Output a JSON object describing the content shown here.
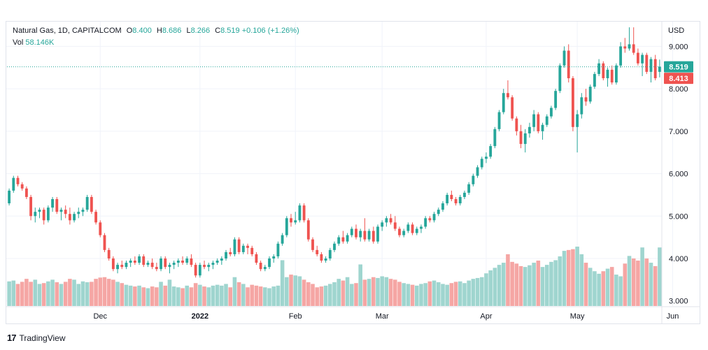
{
  "legend": {
    "symbol": "Natural Gas, 1D, CAPITALCOM",
    "o_label": "O",
    "o_value": "8.400",
    "h_label": "H",
    "h_value": "8.686",
    "l_label": "L",
    "l_value": "8.266",
    "c_label": "C",
    "c_value": "8.519",
    "change": "+0.106 (+1.26%)",
    "vol_label": "Vol",
    "vol_value": "58.146K"
  },
  "footer": {
    "logo": "17",
    "brand": "TradingView"
  },
  "colors": {
    "up": "#26a69a",
    "down": "#ef5350",
    "up_vol": "#9fd5cf",
    "down_vol": "#f5a6a4",
    "grid": "#f0f3fa",
    "axis_text": "#131722"
  },
  "chart_data": {
    "type": "candlestick",
    "title": "Natural Gas, 1D, CAPITALCOM",
    "currency_label": "USD",
    "ylim": [
      2.88,
      9.6
    ],
    "y_ticks": [
      "3.000",
      "4.000",
      "5.000",
      "6.000",
      "7.000",
      "8.000",
      "9.000"
    ],
    "x_ticks": [
      {
        "label": "Dec",
        "index": 21
      },
      {
        "label": "2022",
        "index": 44
      },
      {
        "label": "Feb",
        "index": 66
      },
      {
        "label": "Mar",
        "index": 86
      },
      {
        "label": "Apr",
        "index": 110
      },
      {
        "label": "May",
        "index": 131
      },
      {
        "label": "Jun",
        "index": 153
      }
    ],
    "current_price": {
      "label": "8.519",
      "value": 8.519
    },
    "prev_close": {
      "label": "8.413",
      "value": 8.413
    },
    "ohlc": [
      [
        5.3,
        5.65,
        5.25,
        5.6
      ],
      [
        5.6,
        5.95,
        5.55,
        5.9
      ],
      [
        5.9,
        5.95,
        5.7,
        5.75
      ],
      [
        5.75,
        5.8,
        5.6,
        5.65
      ],
      [
        5.65,
        5.7,
        5.4,
        5.45
      ],
      [
        5.45,
        5.5,
        4.9,
        5.0
      ],
      [
        5.0,
        5.2,
        4.85,
        5.1
      ],
      [
        5.1,
        5.2,
        4.95,
        5.15
      ],
      [
        5.15,
        5.2,
        4.8,
        4.9
      ],
      [
        4.9,
        5.25,
        4.85,
        5.2
      ],
      [
        5.2,
        5.45,
        5.1,
        5.4
      ],
      [
        5.4,
        5.45,
        5.05,
        5.1
      ],
      [
        5.1,
        5.2,
        4.9,
        5.15
      ],
      [
        5.15,
        5.25,
        4.95,
        5.05
      ],
      [
        5.05,
        5.2,
        4.8,
        4.9
      ],
      [
        4.9,
        5.1,
        4.85,
        5.05
      ],
      [
        5.05,
        5.2,
        4.95,
        5.1
      ],
      [
        5.1,
        5.2,
        5.0,
        5.15
      ],
      [
        5.15,
        5.5,
        5.1,
        5.45
      ],
      [
        5.45,
        5.5,
        5.05,
        5.1
      ],
      [
        5.1,
        5.15,
        4.8,
        4.85
      ],
      [
        4.85,
        4.9,
        4.5,
        4.55
      ],
      [
        4.55,
        4.6,
        4.15,
        4.2
      ],
      [
        4.2,
        4.25,
        3.95,
        4.0
      ],
      [
        4.0,
        4.05,
        3.7,
        3.75
      ],
      [
        3.75,
        3.9,
        3.65,
        3.85
      ],
      [
        3.85,
        3.95,
        3.75,
        3.8
      ],
      [
        3.8,
        3.95,
        3.75,
        3.9
      ],
      [
        3.9,
        4.0,
        3.8,
        3.95
      ],
      [
        3.95,
        4.05,
        3.85,
        3.9
      ],
      [
        3.9,
        4.1,
        3.85,
        4.05
      ],
      [
        4.05,
        4.1,
        3.8,
        3.85
      ],
      [
        3.85,
        3.95,
        3.8,
        3.9
      ],
      [
        3.9,
        4.0,
        3.75,
        3.8
      ],
      [
        3.8,
        3.9,
        3.7,
        3.75
      ],
      [
        3.75,
        4.05,
        3.7,
        4.0
      ],
      [
        4.0,
        4.05,
        3.75,
        3.8
      ],
      [
        3.8,
        3.9,
        3.65,
        3.85
      ],
      [
        3.85,
        3.95,
        3.75,
        3.9
      ],
      [
        3.9,
        4.0,
        3.8,
        3.95
      ],
      [
        3.95,
        4.05,
        3.85,
        3.9
      ],
      [
        3.9,
        4.05,
        3.85,
        4.0
      ],
      [
        4.0,
        4.1,
        3.8,
        3.85
      ],
      [
        3.85,
        3.9,
        3.55,
        3.6
      ],
      [
        3.6,
        3.9,
        3.55,
        3.85
      ],
      [
        3.85,
        3.95,
        3.75,
        3.8
      ],
      [
        3.8,
        3.9,
        3.7,
        3.85
      ],
      [
        3.85,
        3.95,
        3.75,
        3.9
      ],
      [
        3.9,
        4.0,
        3.85,
        3.95
      ],
      [
        3.95,
        4.05,
        3.85,
        4.0
      ],
      [
        4.0,
        4.2,
        3.95,
        4.15
      ],
      [
        4.15,
        4.25,
        4.05,
        4.1
      ],
      [
        4.1,
        4.5,
        4.05,
        4.45
      ],
      [
        4.45,
        4.5,
        4.1,
        4.15
      ],
      [
        4.15,
        4.35,
        4.1,
        4.3
      ],
      [
        4.3,
        4.35,
        4.1,
        4.25
      ],
      [
        4.25,
        4.3,
        4.05,
        4.1
      ],
      [
        4.1,
        4.15,
        3.85,
        3.9
      ],
      [
        3.9,
        3.95,
        3.7,
        3.75
      ],
      [
        3.75,
        3.85,
        3.7,
        3.8
      ],
      [
        3.8,
        4.05,
        3.75,
        4.0
      ],
      [
        4.0,
        4.1,
        3.9,
        4.05
      ],
      [
        4.05,
        4.4,
        4.0,
        4.35
      ],
      [
        4.35,
        4.6,
        4.3,
        4.55
      ],
      [
        4.55,
        5.0,
        4.5,
        4.95
      ],
      [
        4.95,
        5.05,
        4.75,
        4.85
      ],
      [
        4.85,
        5.1,
        4.8,
        4.9
      ],
      [
        4.9,
        5.3,
        4.85,
        5.25
      ],
      [
        5.25,
        5.3,
        4.85,
        4.9
      ],
      [
        4.9,
        4.95,
        4.4,
        4.45
      ],
      [
        4.45,
        4.5,
        4.15,
        4.2
      ],
      [
        4.2,
        4.3,
        4.05,
        4.1
      ],
      [
        4.1,
        4.15,
        3.9,
        3.95
      ],
      [
        3.95,
        4.05,
        3.9,
        4.0
      ],
      [
        4.0,
        4.25,
        3.95,
        4.2
      ],
      [
        4.2,
        4.4,
        4.15,
        4.35
      ],
      [
        4.35,
        4.55,
        4.3,
        4.5
      ],
      [
        4.5,
        4.65,
        4.35,
        4.4
      ],
      [
        4.4,
        4.6,
        4.35,
        4.55
      ],
      [
        4.55,
        4.75,
        4.5,
        4.7
      ],
      [
        4.7,
        4.8,
        4.45,
        4.5
      ],
      [
        4.5,
        4.7,
        4.4,
        4.65
      ],
      [
        4.65,
        4.95,
        4.4,
        4.45
      ],
      [
        4.45,
        4.7,
        4.4,
        4.65
      ],
      [
        4.65,
        4.75,
        4.35,
        4.4
      ],
      [
        4.4,
        4.8,
        4.35,
        4.75
      ],
      [
        4.75,
        4.9,
        4.65,
        4.85
      ],
      [
        4.85,
        5.0,
        4.75,
        4.95
      ],
      [
        4.95,
        5.05,
        4.8,
        4.85
      ],
      [
        4.85,
        5.0,
        4.65,
        4.7
      ],
      [
        4.7,
        4.75,
        4.5,
        4.55
      ],
      [
        4.55,
        4.7,
        4.5,
        4.65
      ],
      [
        4.65,
        4.85,
        4.6,
        4.8
      ],
      [
        4.8,
        4.85,
        4.55,
        4.6
      ],
      [
        4.6,
        4.75,
        4.55,
        4.7
      ],
      [
        4.7,
        4.8,
        4.6,
        4.75
      ],
      [
        4.75,
        5.0,
        4.7,
        4.95
      ],
      [
        4.95,
        5.0,
        4.85,
        4.9
      ],
      [
        4.9,
        5.1,
        4.85,
        5.05
      ],
      [
        5.05,
        5.2,
        5.0,
        5.15
      ],
      [
        5.15,
        5.35,
        5.1,
        5.3
      ],
      [
        5.3,
        5.55,
        5.25,
        5.5
      ],
      [
        5.5,
        5.6,
        5.35,
        5.4
      ],
      [
        5.4,
        5.45,
        5.25,
        5.3
      ],
      [
        5.3,
        5.5,
        5.25,
        5.45
      ],
      [
        5.45,
        5.6,
        5.4,
        5.55
      ],
      [
        5.55,
        5.8,
        5.5,
        5.75
      ],
      [
        5.75,
        6.0,
        5.7,
        5.95
      ],
      [
        5.95,
        6.2,
        5.9,
        6.15
      ],
      [
        6.15,
        6.4,
        6.1,
        6.35
      ],
      [
        6.35,
        6.5,
        6.25,
        6.4
      ],
      [
        6.4,
        6.7,
        6.35,
        6.65
      ],
      [
        6.65,
        7.1,
        6.6,
        7.05
      ],
      [
        7.05,
        7.5,
        7.0,
        7.45
      ],
      [
        7.45,
        8.0,
        7.4,
        7.9
      ],
      [
        7.9,
        8.2,
        7.75,
        7.8
      ],
      [
        7.8,
        7.85,
        7.25,
        7.3
      ],
      [
        7.3,
        7.35,
        6.9,
        7.0
      ],
      [
        7.0,
        7.15,
        6.6,
        6.7
      ],
      [
        6.7,
        7.05,
        6.5,
        6.95
      ],
      [
        6.95,
        7.2,
        6.85,
        7.1
      ],
      [
        7.1,
        7.5,
        7.0,
        7.4
      ],
      [
        7.4,
        7.45,
        6.95,
        7.0
      ],
      [
        7.0,
        7.2,
        6.8,
        7.15
      ],
      [
        7.15,
        7.4,
        7.1,
        7.35
      ],
      [
        7.35,
        7.6,
        7.3,
        7.55
      ],
      [
        7.55,
        8.0,
        7.5,
        7.95
      ],
      [
        7.95,
        8.6,
        7.9,
        8.55
      ],
      [
        8.55,
        9.0,
        8.5,
        8.9
      ],
      [
        8.9,
        9.05,
        8.15,
        8.25
      ],
      [
        8.25,
        8.3,
        7.0,
        7.1
      ],
      [
        7.1,
        7.5,
        6.5,
        7.4
      ],
      [
        7.4,
        7.9,
        7.3,
        7.8
      ],
      [
        7.8,
        8.0,
        7.6,
        7.7
      ],
      [
        7.7,
        8.1,
        7.65,
        8.05
      ],
      [
        8.05,
        8.4,
        8.0,
        8.35
      ],
      [
        8.35,
        8.7,
        8.3,
        8.6
      ],
      [
        8.6,
        8.65,
        8.2,
        8.25
      ],
      [
        8.25,
        8.5,
        8.05,
        8.45
      ],
      [
        8.45,
        8.55,
        8.1,
        8.15
      ],
      [
        8.15,
        8.6,
        8.1,
        8.55
      ],
      [
        8.55,
        9.1,
        8.5,
        9.0
      ],
      [
        9.0,
        9.2,
        8.85,
        8.95
      ],
      [
        8.95,
        9.45,
        8.9,
        9.05
      ],
      [
        9.05,
        9.45,
        8.8,
        8.85
      ],
      [
        8.85,
        8.95,
        8.55,
        8.6
      ],
      [
        8.6,
        8.85,
        8.3,
        8.8
      ],
      [
        8.8,
        8.85,
        8.35,
        8.4
      ],
      [
        8.4,
        8.75,
        8.15,
        8.7
      ],
      [
        8.7,
        8.8,
        8.2,
        8.25
      ],
      [
        8.4,
        8.69,
        8.27,
        8.52
      ]
    ],
    "volume": [
      3.46,
      3.48,
      3.4,
      3.45,
      3.52,
      3.45,
      3.5,
      3.4,
      3.42,
      3.46,
      3.5,
      3.44,
      3.4,
      3.45,
      3.52,
      3.5,
      3.4,
      3.46,
      3.44,
      3.45,
      3.52,
      3.55,
      3.56,
      3.52,
      3.5,
      3.45,
      3.42,
      3.38,
      3.36,
      3.34,
      3.36,
      3.32,
      3.3,
      3.34,
      3.32,
      3.45,
      3.36,
      3.5,
      3.34,
      3.32,
      3.3,
      3.36,
      3.32,
      3.42,
      3.38,
      3.34,
      3.32,
      3.36,
      3.38,
      3.36,
      3.4,
      3.32,
      3.56,
      3.44,
      3.4,
      3.32,
      3.38,
      3.36,
      3.34,
      3.32,
      3.3,
      3.34,
      3.36,
      3.96,
      3.56,
      3.62,
      3.6,
      3.58,
      3.5,
      3.44,
      3.4,
      3.32,
      3.34,
      3.36,
      3.4,
      3.44,
      3.52,
      3.48,
      3.56,
      3.4,
      3.42,
      3.86,
      3.5,
      3.52,
      3.56,
      3.54,
      3.58,
      3.56,
      3.52,
      3.5,
      3.45,
      3.42,
      3.4,
      3.38,
      3.36,
      3.4,
      3.42,
      3.46,
      3.48,
      3.44,
      3.4,
      3.38,
      3.42,
      3.45,
      3.46,
      3.42,
      3.48,
      3.52,
      3.54,
      3.56,
      3.65,
      3.72,
      3.78,
      3.85,
      3.9,
      4.1,
      3.92,
      3.88,
      3.82,
      3.8,
      3.84,
      3.9,
      3.95,
      3.8,
      3.85,
      3.92,
      3.96,
      4.05,
      4.18,
      4.2,
      4.22,
      4.28,
      4.1,
      3.9,
      3.78,
      3.7,
      3.64,
      3.7,
      3.76,
      3.8,
      3.62,
      3.58,
      3.88,
      4.06,
      4.0,
      3.95,
      4.26,
      4.0,
      3.9,
      3.82,
      4.26
    ]
  }
}
